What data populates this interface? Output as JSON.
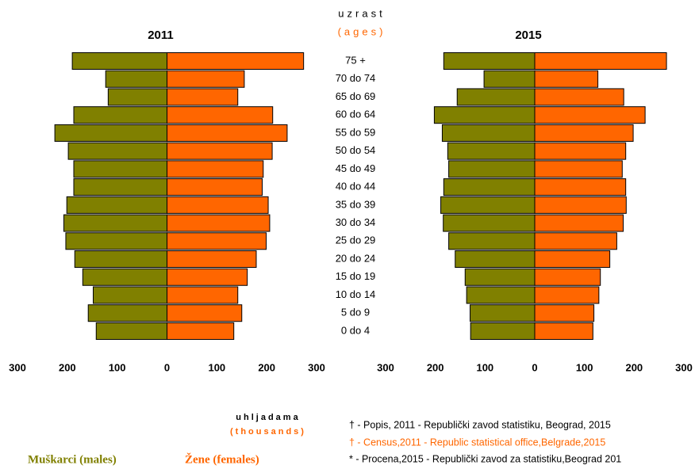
{
  "chart_data": [
    {
      "type": "bar",
      "title": "2011",
      "categories": [
        "75 +",
        "70 do 74",
        "65 do 69",
        "60 do 64",
        "55 do 59",
        "50 do 54",
        "45 do 49",
        "40 do 44",
        "35 do 39",
        "30 do 34",
        "25 do 29",
        "20 do 24",
        "15 do 19",
        "10 do 14",
        "5 do 9",
        "0 do 4"
      ],
      "series": [
        {
          "name": "Muškarci (males)",
          "color": "#808000",
          "values": [
            190,
            123,
            118,
            187,
            225,
            198,
            187,
            187,
            201,
            207,
            203,
            185,
            169,
            148,
            158,
            142
          ]
        },
        {
          "name": "Žene (females)",
          "color": "#ff6600",
          "values": [
            274,
            155,
            142,
            212,
            241,
            211,
            193,
            191,
            203,
            206,
            199,
            179,
            161,
            142,
            150,
            134
          ]
        }
      ],
      "xlim": [
        -300,
        300
      ],
      "xticks": [
        {
          "value": -300,
          "label": "300"
        },
        {
          "value": -200,
          "label": "200"
        },
        {
          "value": -100,
          "label": "100"
        },
        0,
        100,
        200,
        300
      ]
    },
    {
      "type": "bar",
      "title": "2015",
      "series": [
        {
          "color": "#808000",
          "values": [
            183,
            102,
            156,
            202,
            186,
            175,
            173,
            183,
            189,
            184,
            173,
            160,
            140,
            137,
            130,
            129
          ]
        },
        {
          "color": "#ff6600",
          "values": [
            265,
            127,
            179,
            222,
            198,
            183,
            176,
            183,
            184,
            178,
            165,
            151,
            132,
            129,
            119,
            117
          ]
        }
      ],
      "xlim": [
        -300,
        300
      ],
      "xticks": [
        {
          "value": -300,
          "label": "300"
        },
        {
          "value": -200,
          "label": "200"
        },
        {
          "value": -100,
          "label": "100"
        },
        0,
        100,
        200,
        300
      ]
    }
  ],
  "age_label": {
    "title": "uzrast",
    "subtitle": "(ages)"
  },
  "unit_label": {
    "title": "uhljadama",
    "subtitle": "(thousands)"
  },
  "notes": [
    "† - Popis, 2011 - Republički zavod statistiku, Beograd, 2015",
    "† - Census,2011 - Republic statistical office,Belgrade,2015",
    "* - Procena,2015 - Republički zavod za statistiku,Beograd 201"
  ]
}
